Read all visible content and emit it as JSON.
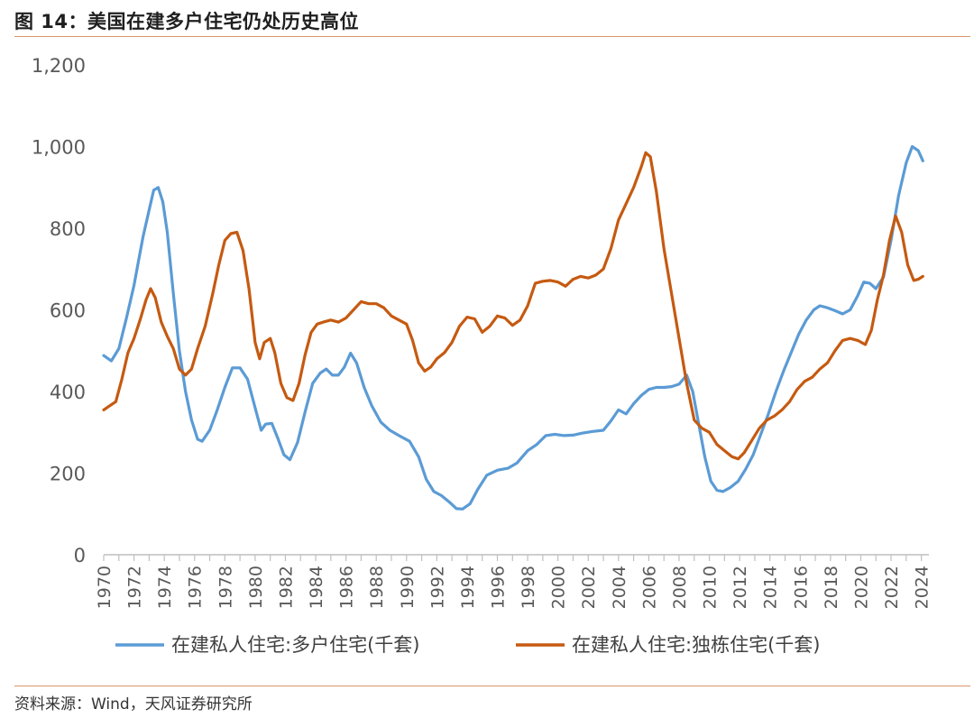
{
  "header": {
    "title": "图 14：美国在建多户住宅仍处历史高位"
  },
  "footer": {
    "source": "资料来源：Wind，天风证券研究所"
  },
  "colors": {
    "accent_rule": "#d9956a",
    "multi_family": "#5b9bd5",
    "single_family": "#c55a11"
  },
  "chart_data": {
    "type": "line",
    "title": "",
    "xlabel": "",
    "ylabel": "",
    "ylim": [
      0,
      1200
    ],
    "xlim": [
      1970,
      2024.5
    ],
    "y_ticks": [
      0,
      200,
      400,
      600,
      800,
      1000,
      1200
    ],
    "y_tick_labels": [
      "0",
      "200",
      "400",
      "600",
      "800",
      "1,000",
      "1,200"
    ],
    "x_ticks": [
      1970,
      1972,
      1974,
      1976,
      1978,
      1980,
      1982,
      1984,
      1986,
      1988,
      1990,
      1992,
      1994,
      1996,
      1998,
      2000,
      2002,
      2004,
      2006,
      2008,
      2010,
      2012,
      2014,
      2016,
      2018,
      2020,
      2022,
      2024
    ],
    "x_tick_labels": [
      "1970",
      "1972",
      "1974",
      "1976",
      "1978",
      "1980",
      "1982",
      "1984",
      "1986",
      "1988",
      "1990",
      "1992",
      "1994",
      "1996",
      "1998",
      "2000",
      "2002",
      "2004",
      "2006",
      "2008",
      "2010",
      "2012",
      "2014",
      "2016",
      "2018",
      "2020",
      "2022",
      "2024"
    ],
    "grid": false,
    "legend_position": "bottom",
    "series": [
      {
        "name": "在建私人住宅:多户住宅(千套)",
        "color": "#5b9bd5",
        "points": [
          [
            1970.0,
            488
          ],
          [
            1970.5,
            475
          ],
          [
            1971.0,
            505
          ],
          [
            1971.5,
            580
          ],
          [
            1972.0,
            660
          ],
          [
            1972.3,
            720
          ],
          [
            1972.6,
            780
          ],
          [
            1973.0,
            845
          ],
          [
            1973.3,
            893
          ],
          [
            1973.6,
            900
          ],
          [
            1973.9,
            865
          ],
          [
            1974.2,
            790
          ],
          [
            1974.6,
            640
          ],
          [
            1975.0,
            500
          ],
          [
            1975.4,
            400
          ],
          [
            1975.8,
            330
          ],
          [
            1976.2,
            283
          ],
          [
            1976.5,
            278
          ],
          [
            1977.0,
            305
          ],
          [
            1977.5,
            355
          ],
          [
            1978.0,
            410
          ],
          [
            1978.5,
            458
          ],
          [
            1979.0,
            458
          ],
          [
            1979.5,
            430
          ],
          [
            1980.0,
            360
          ],
          [
            1980.4,
            305
          ],
          [
            1980.7,
            320
          ],
          [
            1981.1,
            322
          ],
          [
            1981.5,
            285
          ],
          [
            1981.9,
            245
          ],
          [
            1982.3,
            233
          ],
          [
            1982.8,
            275
          ],
          [
            1983.3,
            350
          ],
          [
            1983.8,
            420
          ],
          [
            1984.3,
            445
          ],
          [
            1984.7,
            455
          ],
          [
            1985.1,
            440
          ],
          [
            1985.5,
            440
          ],
          [
            1985.9,
            460
          ],
          [
            1986.3,
            494
          ],
          [
            1986.7,
            470
          ],
          [
            1987.2,
            410
          ],
          [
            1987.7,
            365
          ],
          [
            1988.3,
            325
          ],
          [
            1988.9,
            305
          ],
          [
            1989.5,
            292
          ],
          [
            1990.2,
            278
          ],
          [
            1990.8,
            240
          ],
          [
            1991.3,
            185
          ],
          [
            1991.8,
            155
          ],
          [
            1992.3,
            145
          ],
          [
            1992.8,
            130
          ],
          [
            1993.3,
            113
          ],
          [
            1993.7,
            112
          ],
          [
            1994.2,
            125
          ],
          [
            1994.7,
            160
          ],
          [
            1995.3,
            195
          ],
          [
            1996.0,
            207
          ],
          [
            1996.7,
            212
          ],
          [
            1997.3,
            225
          ],
          [
            1998.0,
            255
          ],
          [
            1998.6,
            270
          ],
          [
            1999.2,
            292
          ],
          [
            1999.8,
            295
          ],
          [
            2000.4,
            292
          ],
          [
            2001.0,
            293
          ],
          [
            2001.6,
            298
          ],
          [
            2002.3,
            302
          ],
          [
            2003.0,
            305
          ],
          [
            2003.5,
            328
          ],
          [
            2004.0,
            355
          ],
          [
            2004.5,
            345
          ],
          [
            2005.0,
            370
          ],
          [
            2005.5,
            390
          ],
          [
            2006.0,
            405
          ],
          [
            2006.5,
            410
          ],
          [
            2007.0,
            410
          ],
          [
            2007.5,
            412
          ],
          [
            2008.0,
            418
          ],
          [
            2008.5,
            440
          ],
          [
            2008.9,
            400
          ],
          [
            2009.3,
            320
          ],
          [
            2009.7,
            240
          ],
          [
            2010.1,
            180
          ],
          [
            2010.5,
            158
          ],
          [
            2010.9,
            155
          ],
          [
            2011.4,
            165
          ],
          [
            2011.9,
            180
          ],
          [
            2012.4,
            210
          ],
          [
            2012.9,
            245
          ],
          [
            2013.4,
            295
          ],
          [
            2013.9,
            345
          ],
          [
            2014.4,
            400
          ],
          [
            2014.9,
            450
          ],
          [
            2015.4,
            495
          ],
          [
            2015.9,
            540
          ],
          [
            2016.4,
            575
          ],
          [
            2016.9,
            600
          ],
          [
            2017.3,
            610
          ],
          [
            2017.8,
            605
          ],
          [
            2018.3,
            598
          ],
          [
            2018.8,
            590
          ],
          [
            2019.3,
            600
          ],
          [
            2019.8,
            635
          ],
          [
            2020.2,
            668
          ],
          [
            2020.6,
            665
          ],
          [
            2021.0,
            652
          ],
          [
            2021.5,
            680
          ],
          [
            2022.0,
            770
          ],
          [
            2022.5,
            880
          ],
          [
            2023.0,
            960
          ],
          [
            2023.4,
            1000
          ],
          [
            2023.8,
            990
          ],
          [
            2024.1,
            965
          ]
        ]
      },
      {
        "name": "在建私人住宅:独栋住宅(千套)",
        "color": "#c55a11",
        "points": [
          [
            1970.0,
            355
          ],
          [
            1970.4,
            365
          ],
          [
            1970.8,
            375
          ],
          [
            1971.2,
            430
          ],
          [
            1971.6,
            495
          ],
          [
            1972.0,
            530
          ],
          [
            1972.4,
            575
          ],
          [
            1972.8,
            625
          ],
          [
            1973.1,
            652
          ],
          [
            1973.4,
            630
          ],
          [
            1973.8,
            570
          ],
          [
            1974.2,
            535
          ],
          [
            1974.6,
            505
          ],
          [
            1975.0,
            455
          ],
          [
            1975.4,
            440
          ],
          [
            1975.8,
            455
          ],
          [
            1976.2,
            505
          ],
          [
            1976.7,
            560
          ],
          [
            1977.2,
            640
          ],
          [
            1977.6,
            710
          ],
          [
            1978.0,
            770
          ],
          [
            1978.4,
            787
          ],
          [
            1978.8,
            790
          ],
          [
            1979.2,
            745
          ],
          [
            1979.6,
            650
          ],
          [
            1980.0,
            520
          ],
          [
            1980.3,
            480
          ],
          [
            1980.6,
            520
          ],
          [
            1981.0,
            530
          ],
          [
            1981.3,
            495
          ],
          [
            1981.7,
            420
          ],
          [
            1982.1,
            385
          ],
          [
            1982.5,
            378
          ],
          [
            1982.9,
            420
          ],
          [
            1983.3,
            490
          ],
          [
            1983.7,
            545
          ],
          [
            1984.1,
            565
          ],
          [
            1984.5,
            570
          ],
          [
            1985.0,
            575
          ],
          [
            1985.5,
            570
          ],
          [
            1986.0,
            580
          ],
          [
            1986.5,
            600
          ],
          [
            1987.0,
            620
          ],
          [
            1987.5,
            615
          ],
          [
            1988.0,
            615
          ],
          [
            1988.5,
            605
          ],
          [
            1989.0,
            585
          ],
          [
            1989.5,
            575
          ],
          [
            1990.0,
            565
          ],
          [
            1990.4,
            525
          ],
          [
            1990.8,
            470
          ],
          [
            1991.2,
            450
          ],
          [
            1991.6,
            460
          ],
          [
            1992.0,
            480
          ],
          [
            1992.5,
            495
          ],
          [
            1993.0,
            520
          ],
          [
            1993.5,
            560
          ],
          [
            1994.0,
            582
          ],
          [
            1994.5,
            578
          ],
          [
            1995.0,
            545
          ],
          [
            1995.5,
            560
          ],
          [
            1996.0,
            585
          ],
          [
            1996.5,
            580
          ],
          [
            1997.0,
            562
          ],
          [
            1997.5,
            575
          ],
          [
            1998.0,
            610
          ],
          [
            1998.5,
            665
          ],
          [
            1999.0,
            670
          ],
          [
            1999.5,
            672
          ],
          [
            2000.0,
            668
          ],
          [
            2000.5,
            658
          ],
          [
            2001.0,
            675
          ],
          [
            2001.5,
            682
          ],
          [
            2002.0,
            678
          ],
          [
            2002.5,
            685
          ],
          [
            2003.0,
            700
          ],
          [
            2003.5,
            750
          ],
          [
            2004.0,
            820
          ],
          [
            2004.5,
            860
          ],
          [
            2005.0,
            900
          ],
          [
            2005.5,
            950
          ],
          [
            2005.8,
            985
          ],
          [
            2006.1,
            975
          ],
          [
            2006.5,
            890
          ],
          [
            2007.0,
            750
          ],
          [
            2007.5,
            640
          ],
          [
            2008.0,
            530
          ],
          [
            2008.5,
            420
          ],
          [
            2009.0,
            330
          ],
          [
            2009.5,
            310
          ],
          [
            2010.0,
            300
          ],
          [
            2010.5,
            270
          ],
          [
            2011.0,
            255
          ],
          [
            2011.5,
            240
          ],
          [
            2011.9,
            235
          ],
          [
            2012.3,
            250
          ],
          [
            2012.8,
            280
          ],
          [
            2013.3,
            310
          ],
          [
            2013.8,
            330
          ],
          [
            2014.3,
            340
          ],
          [
            2014.8,
            355
          ],
          [
            2015.3,
            375
          ],
          [
            2015.8,
            405
          ],
          [
            2016.3,
            425
          ],
          [
            2016.8,
            435
          ],
          [
            2017.3,
            455
          ],
          [
            2017.8,
            470
          ],
          [
            2018.3,
            500
          ],
          [
            2018.8,
            525
          ],
          [
            2019.3,
            530
          ],
          [
            2019.8,
            525
          ],
          [
            2020.3,
            515
          ],
          [
            2020.7,
            550
          ],
          [
            2021.1,
            625
          ],
          [
            2021.5,
            685
          ],
          [
            2021.9,
            770
          ],
          [
            2022.3,
            830
          ],
          [
            2022.7,
            790
          ],
          [
            2023.1,
            710
          ],
          [
            2023.5,
            672
          ],
          [
            2023.8,
            675
          ],
          [
            2024.1,
            682
          ]
        ]
      }
    ]
  }
}
